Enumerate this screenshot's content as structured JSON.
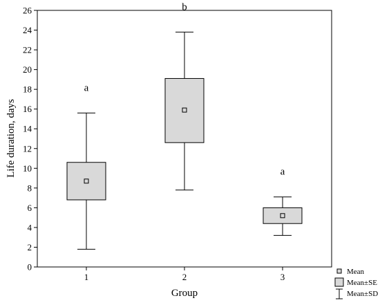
{
  "chart_data": {
    "type": "box",
    "xlabel": "Group",
    "ylabel": "Life duration, days",
    "ylim": [
      0,
      26
    ],
    "yticks": [
      0,
      2,
      4,
      6,
      8,
      10,
      12,
      14,
      16,
      18,
      20,
      22,
      24,
      26
    ],
    "categories": [
      "1",
      "2",
      "3"
    ],
    "groups": [
      {
        "category": "1",
        "mean": 8.7,
        "se_low": 6.8,
        "se_high": 10.6,
        "sd_low": 1.8,
        "sd_high": 15.6,
        "letter": "a"
      },
      {
        "category": "2",
        "mean": 15.9,
        "se_low": 12.6,
        "se_high": 19.1,
        "sd_low": 7.8,
        "sd_high": 23.8,
        "letter": "b"
      },
      {
        "category": "3",
        "mean": 5.2,
        "se_low": 4.4,
        "se_high": 6.0,
        "sd_low": 3.2,
        "sd_high": 7.1,
        "letter": "a"
      }
    ],
    "legend": {
      "position": "bottom-right",
      "items": [
        "Mean",
        "Mean±SE",
        "Mean±SD"
      ]
    },
    "colors": {
      "box_fill": "#d9d9d9",
      "stroke": "#000000"
    }
  }
}
